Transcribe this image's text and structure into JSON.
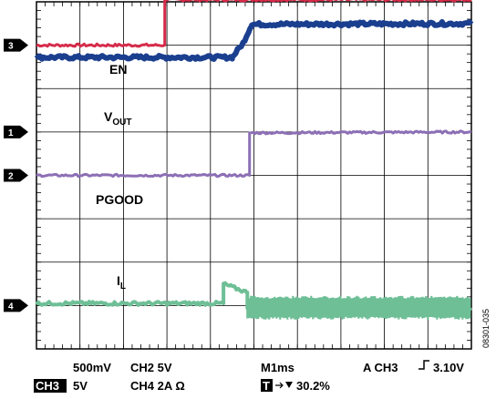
{
  "chart_data": {
    "type": "line",
    "title": "",
    "xlabel": "",
    "ylabel": "",
    "grid": true,
    "divisions": {
      "x": 10,
      "y": 8
    },
    "x": [
      0,
      2.95,
      3.0,
      3.35,
      4.0,
      4.5,
      4.7,
      10
    ],
    "series": [
      {
        "key": "en",
        "color": "#d62b4a",
        "noise": 0.03,
        "x": [
          0,
          2.95,
          2.95,
          10
        ],
        "y": [
          7.0,
          7.0,
          8.05,
          8.05
        ]
      },
      {
        "key": "vout",
        "color": "#1b3f8f",
        "noise": 0.04,
        "thick": 6,
        "x": [
          0,
          4.5,
          4.75,
          4.95,
          10
        ],
        "y": [
          6.72,
          6.72,
          7.05,
          7.48,
          7.5
        ]
      },
      {
        "key": "pgood",
        "color": "#8c6fb5",
        "noise": 0.025,
        "x": [
          0,
          4.9,
          4.9,
          10
        ],
        "y": [
          4.0,
          4.0,
          4.98,
          5.0
        ]
      },
      {
        "key": "il",
        "color": "#6ebf96",
        "noise": 0.04,
        "thick": 4,
        "x": [
          0,
          4.3,
          4.3,
          4.85,
          4.85,
          10
        ],
        "y": [
          1.05,
          1.05,
          1.5,
          1.3,
          0.95,
          0.95
        ],
        "bandAfter": {
          "start": 4.85,
          "width": 0.55
        }
      }
    ],
    "markers": [
      {
        "label": "3",
        "y": 7.0
      },
      {
        "label": "1",
        "y": 5.0
      },
      {
        "label": "2",
        "y": 4.0
      },
      {
        "label": "4",
        "y": 1.0
      }
    ]
  },
  "annotations": {
    "en": "EN",
    "vout_main": "V",
    "vout_sub": "OUT",
    "pgood": "PGOOD",
    "il_main": "I",
    "il_sub": "L"
  },
  "footer": {
    "ch1_scale": "500mV",
    "ch2": "CH2  5V",
    "timebase": "M1ms",
    "trigger": "A  CH3",
    "trigger_level": "3.10V",
    "ch3_badge": "CH3",
    "ch3_scale": "5V",
    "ch4": "CH4  2A Ω",
    "t_badge": "T",
    "position": "30.2%"
  },
  "figure_id": "08301-035",
  "colors": {
    "grid": "#000000",
    "plot_bg": "#ffffff"
  }
}
